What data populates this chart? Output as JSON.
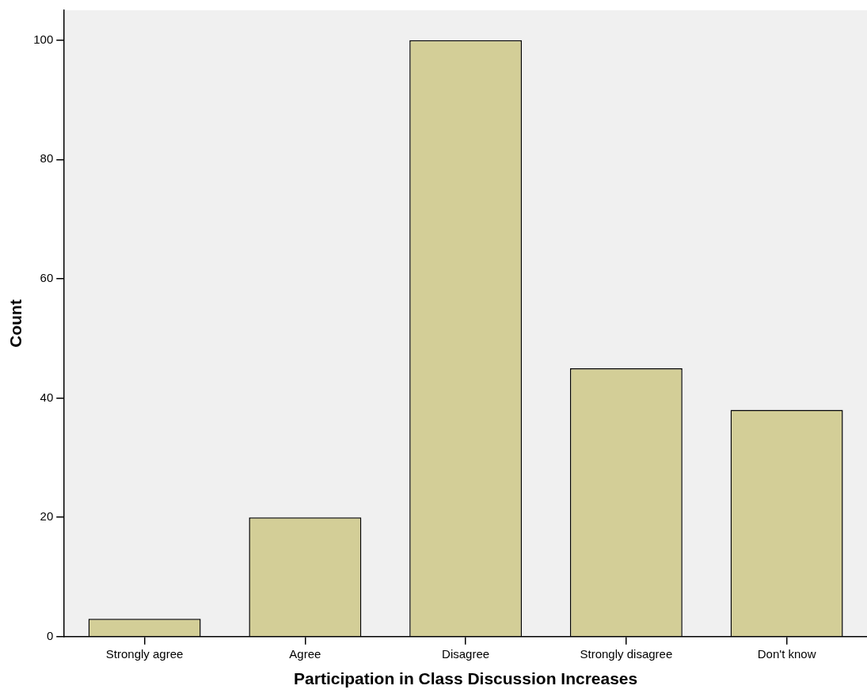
{
  "chart_data": {
    "type": "bar",
    "xlabel": "Participation in Class Discussion Increases",
    "ylabel": "Count",
    "categories": [
      "Strongly agree",
      "Agree",
      "Disagree",
      "Strongly disagree",
      "Don't know"
    ],
    "values": [
      3,
      20,
      100,
      45,
      38
    ],
    "color": "#d3ce97",
    "ylim": [
      0,
      105
    ],
    "yticks": [
      0,
      20,
      40,
      60,
      80,
      100
    ],
    "grid": false,
    "legend": false
  }
}
